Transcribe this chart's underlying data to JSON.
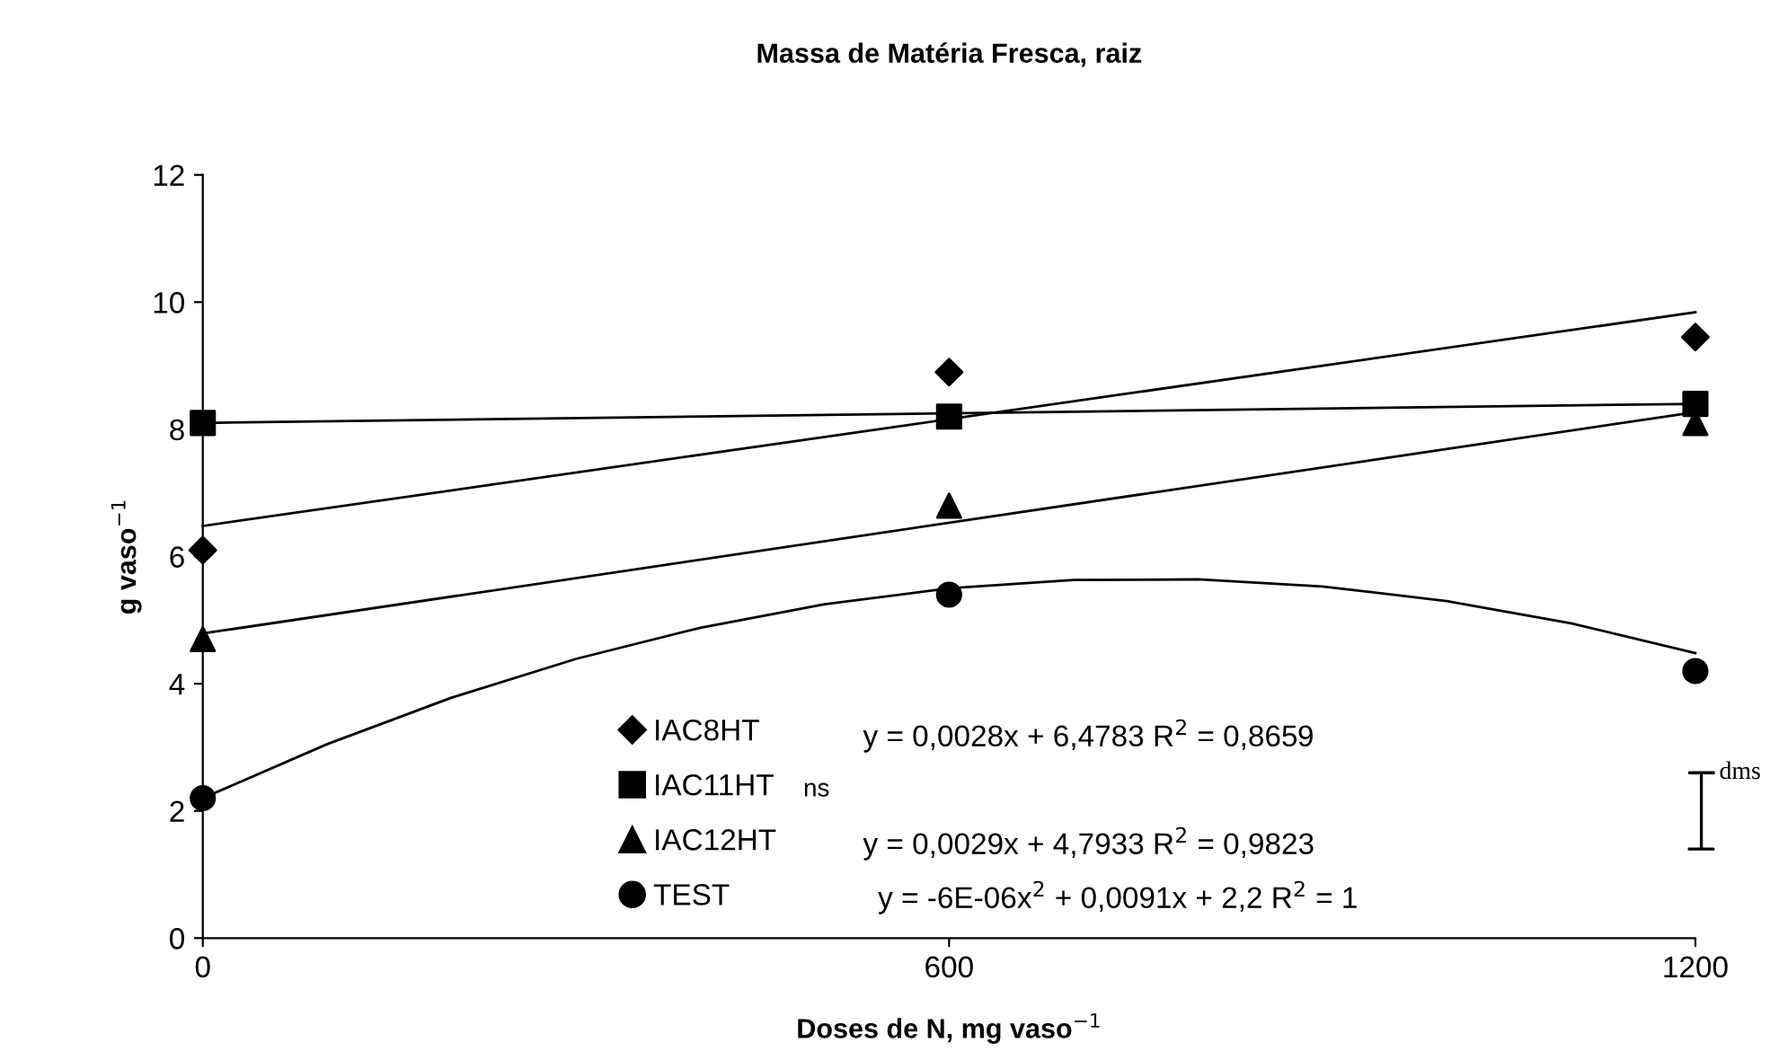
{
  "chart_data": {
    "type": "scatter",
    "title": "Massa de Matéria Fresca, raiz",
    "xlabel": "Doses de N, mg vaso$^{−1}$",
    "ylabel": "g vaso$^{−1}$",
    "x": [
      0,
      600,
      1200
    ],
    "xlim": [
      0,
      1200
    ],
    "xticks": [
      0,
      600,
      1200
    ],
    "ylim": [
      0,
      12
    ],
    "yticks": [
      0,
      2,
      4,
      6,
      8,
      10,
      12
    ],
    "grid": false,
    "legend": "bottom",
    "series": [
      {
        "name": "IAC8HT",
        "color": "#000000",
        "marker": "diamond",
        "values": [
          6.1,
          8.9,
          9.45
        ]
      },
      {
        "name": "IAC11HT",
        "color": "#000000",
        "marker": "square",
        "values": [
          8.1,
          8.2,
          8.4
        ]
      },
      {
        "name": "IAC12HT",
        "color": "#000000",
        "marker": "triangle",
        "values": [
          4.7,
          6.8,
          8.1
        ]
      },
      {
        "name": "TEST",
        "color": "#000000",
        "marker": "circle",
        "values": [
          2.2,
          5.4,
          4.2
        ]
      },
      {
        "type": "line",
        "color": "#000000",
        "x": [
          0,
          1200
        ],
        "values": [
          6.48,
          9.84
        ]
      },
      {
        "type": "line",
        "color": "#000000",
        "x": [
          0,
          1200
        ],
        "values": [
          8.1,
          8.4
        ]
      },
      {
        "type": "line",
        "color": "#000000",
        "x": [
          0,
          1200
        ],
        "values": [
          4.79,
          8.27
        ]
      },
      {
        "type": "line",
        "color": "#000000",
        "x": [
          0,
          100,
          200,
          300,
          400,
          500,
          600,
          700,
          800,
          900,
          1000,
          1100,
          1200
        ],
        "values": [
          2.2,
          3.05,
          3.78,
          4.39,
          4.88,
          5.25,
          5.5,
          5.63,
          5.64,
          5.53,
          5.3,
          4.95,
          4.48
        ]
      }
    ],
    "annotations": [
      "y = 0,0028x + 6,4783 R$^{2}$ = 0,8659",
      "ns",
      "y = 0,0029x + 4,7933 R$^{2}$ = 0,9823",
      "y = -6E-06x$^{2}$ + 0,0091x + 2,2 R$^{2}$ = 1",
      "dms"
    ]
  }
}
